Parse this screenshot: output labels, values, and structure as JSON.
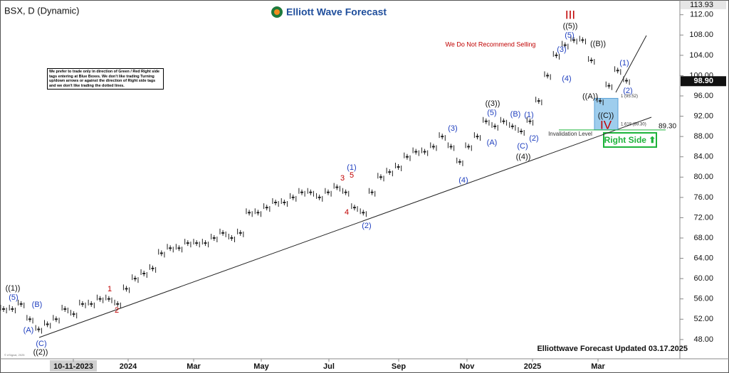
{
  "chart_data": {
    "type": "price-bars",
    "symbol_title": "BSX, D (Dynamic)",
    "brand": "Elliott Wave Forecast",
    "footer": "Elliottwave Forecast Updated 03.17.2025",
    "source": "© eSignal, 2025",
    "note": "We prefer to trade only in direction of Green / Red Right side tags entering at Blue Boxes. We don't like trading Turning up/down arrows or against the direction of Right side tags and we don't like trading the dotted lines.",
    "warning": "We Do Not Recommend Selling",
    "invalidation_label": "Invalidation Level",
    "right_side_tag": "Right Side ⬆",
    "color": "#222222",
    "values": [
      54,
      54,
      55,
      52,
      50,
      51,
      52,
      54,
      53,
      55,
      55,
      56,
      56,
      55,
      58,
      60,
      61,
      62,
      65,
      66,
      66,
      67,
      67,
      67,
      68,
      69,
      68,
      69,
      73,
      73,
      74,
      75,
      75,
      76,
      77,
      77,
      76,
      77,
      78,
      77,
      74,
      73,
      77,
      80,
      81,
      82,
      84,
      85,
      85,
      86,
      88,
      86,
      83,
      86,
      88,
      91,
      90,
      91,
      90,
      89,
      91,
      95,
      100,
      104,
      106,
      107,
      107,
      103,
      95,
      98,
      101,
      99
    ],
    "x_labels": [
      "10-11-2023",
      "2024",
      "Mar",
      "May",
      "Jul",
      "Sep",
      "Nov",
      "2025",
      "Mar"
    ],
    "ylim": [
      44.9,
      114.2
    ],
    "yticks": [
      {
        "value": 48,
        "label": "48.00"
      },
      {
        "value": 52,
        "label": "52.00"
      },
      {
        "value": 56,
        "label": "56.00"
      },
      {
        "value": 60,
        "label": "60.00"
      },
      {
        "value": 64,
        "label": "64.00"
      },
      {
        "value": 68,
        "label": "68.00"
      },
      {
        "value": 72,
        "label": "72.00"
      },
      {
        "value": 76,
        "label": "76.00"
      },
      {
        "value": 80,
        "label": "80.00"
      },
      {
        "value": 84,
        "label": "84.00"
      },
      {
        "value": 88,
        "label": "88.00"
      },
      {
        "value": 92,
        "label": "92.00"
      },
      {
        "value": 96,
        "label": "96.00"
      },
      {
        "value": 100,
        "label": "100.00"
      },
      {
        "value": 104,
        "label": "104.00"
      },
      {
        "value": 108,
        "label": "108.00"
      },
      {
        "value": 112,
        "label": "112.00"
      }
    ],
    "top_price": {
      "value": 113.93,
      "label": "113.93"
    },
    "last_price": {
      "value": 98.9,
      "label": "98.90"
    },
    "invalidation": {
      "value": 89.3,
      "label": "89.30"
    },
    "blue_box": [
      95.52,
      89.3
    ],
    "trendline": [
      48.4,
      91.8
    ],
    "waves": [
      {
        "text": "((1))",
        "color": "#111111"
      },
      {
        "text": "(5)",
        "color": "#1f3fbf"
      },
      {
        "text": "(A)",
        "color": "#1f3fbf"
      },
      {
        "text": "(B)",
        "color": "#1f3fbf"
      },
      {
        "text": "(C)",
        "color": "#1f3fbf"
      },
      {
        "text": "((2))",
        "color": "#111111"
      },
      {
        "text": "1",
        "color": "#c00000"
      },
      {
        "text": "2",
        "color": "#c00000"
      },
      {
        "text": "3",
        "color": "#c00000"
      },
      {
        "text": "(1)",
        "color": "#1f3fbf"
      },
      {
        "text": "5",
        "color": "#c00000"
      },
      {
        "text": "4",
        "color": "#c00000"
      },
      {
        "text": "(2)",
        "color": "#1f3fbf"
      },
      {
        "text": "(3)",
        "color": "#1f3fbf"
      },
      {
        "text": "(4)",
        "color": "#1f3fbf"
      },
      {
        "text": "((3))",
        "color": "#111111"
      },
      {
        "text": "(5)",
        "color": "#1f3fbf"
      },
      {
        "text": "(A)",
        "color": "#1f3fbf"
      },
      {
        "text": "(B)",
        "color": "#1f3fbf"
      },
      {
        "text": "(1)",
        "color": "#1f3fbf"
      },
      {
        "text": "(2)",
        "color": "#1f3fbf"
      },
      {
        "text": "(C)",
        "color": "#1f3fbf"
      },
      {
        "text": "((4))",
        "color": "#111111"
      },
      {
        "text": "III",
        "color": "#c00000"
      },
      {
        "text": "((5))",
        "color": "#111111"
      },
      {
        "text": "(5)",
        "color": "#1f3fbf"
      },
      {
        "text": "(3)",
        "color": "#1f3fbf"
      },
      {
        "text": "(4)",
        "color": "#1f3fbf"
      },
      {
        "text": "((A))",
        "color": "#111111"
      },
      {
        "text": "((B))",
        "color": "#111111"
      },
      {
        "text": "(1)",
        "color": "#1f3fbf"
      },
      {
        "text": "(2)",
        "color": "#1f3fbf"
      },
      {
        "text": "((C))",
        "color": "#111111"
      },
      {
        "text": "IV",
        "color": "#c00000"
      }
    ],
    "box_labels": [
      "1 (95.52)",
      "1.618 (89.30)"
    ]
  }
}
